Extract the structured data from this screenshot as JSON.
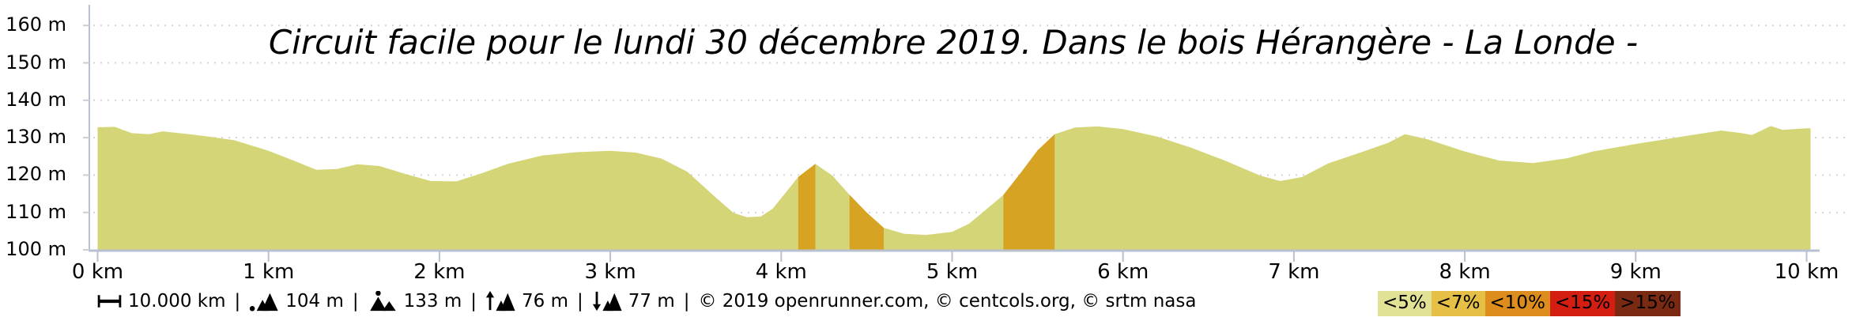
{
  "chart_data": {
    "type": "area",
    "title": "Circuit facile pour le lundi 30 décembre 2019. Dans le bois Hérangère - La Londe -",
    "x_unit": "km",
    "y_unit": "m",
    "xlim": [
      0,
      10
    ],
    "ylim": [
      100,
      165
    ],
    "grid": "dotted-horizontal",
    "x_ticks": [
      {
        "km": 0,
        "label": "0 km"
      },
      {
        "km": 1,
        "label": "1 km"
      },
      {
        "km": 2,
        "label": "2 km"
      },
      {
        "km": 3,
        "label": "3 km"
      },
      {
        "km": 4,
        "label": "4 km"
      },
      {
        "km": 5,
        "label": "5 km"
      },
      {
        "km": 6,
        "label": "6 km"
      },
      {
        "km": 7,
        "label": "7 km"
      },
      {
        "km": 8,
        "label": "8 km"
      },
      {
        "km": 9,
        "label": "9 km"
      },
      {
        "km": 10,
        "label": "10 km"
      }
    ],
    "y_ticks": [
      {
        "value": 100,
        "label": "100 m"
      },
      {
        "value": 110,
        "label": "110 m"
      },
      {
        "value": 120,
        "label": "120 m"
      },
      {
        "value": 130,
        "label": "130 m"
      },
      {
        "value": 140,
        "label": "140 m"
      },
      {
        "value": 150,
        "label": "150 m"
      },
      {
        "value": 160,
        "label": "160 m"
      }
    ],
    "profile_km_m": [
      [
        0.0,
        132.8
      ],
      [
        0.1,
        132.9
      ],
      [
        0.2,
        131.2
      ],
      [
        0.3,
        130.9
      ],
      [
        0.38,
        131.7
      ],
      [
        0.5,
        131.1
      ],
      [
        0.65,
        130.3
      ],
      [
        0.8,
        129.3
      ],
      [
        1.0,
        126.5
      ],
      [
        1.15,
        123.8
      ],
      [
        1.28,
        121.4
      ],
      [
        1.4,
        121.6
      ],
      [
        1.52,
        122.9
      ],
      [
        1.65,
        122.4
      ],
      [
        1.8,
        120.3
      ],
      [
        1.95,
        118.4
      ],
      [
        2.1,
        118.3
      ],
      [
        2.25,
        120.5
      ],
      [
        2.4,
        123.0
      ],
      [
        2.6,
        125.2
      ],
      [
        2.8,
        126.1
      ],
      [
        3.0,
        126.5
      ],
      [
        3.15,
        126.0
      ],
      [
        3.3,
        124.4
      ],
      [
        3.45,
        120.9
      ],
      [
        3.6,
        114.7
      ],
      [
        3.72,
        109.9
      ],
      [
        3.8,
        108.7
      ],
      [
        3.88,
        108.9
      ],
      [
        3.95,
        111.0
      ],
      [
        4.1,
        119.5
      ],
      [
        4.2,
        123.0
      ],
      [
        4.3,
        119.8
      ],
      [
        4.4,
        114.7
      ],
      [
        4.5,
        110.0
      ],
      [
        4.6,
        105.9
      ],
      [
        4.72,
        104.3
      ],
      [
        4.85,
        104.0
      ],
      [
        5.0,
        104.8
      ],
      [
        5.1,
        107.0
      ],
      [
        5.2,
        110.8
      ],
      [
        5.3,
        114.7
      ],
      [
        5.4,
        120.5
      ],
      [
        5.5,
        126.6
      ],
      [
        5.6,
        130.9
      ],
      [
        5.72,
        132.7
      ],
      [
        5.85,
        133.0
      ],
      [
        6.0,
        132.3
      ],
      [
        6.2,
        130.3
      ],
      [
        6.4,
        127.3
      ],
      [
        6.6,
        123.8
      ],
      [
        6.8,
        119.9
      ],
      [
        6.92,
        118.4
      ],
      [
        7.05,
        119.5
      ],
      [
        7.2,
        123.1
      ],
      [
        7.4,
        126.2
      ],
      [
        7.55,
        128.6
      ],
      [
        7.65,
        130.9
      ],
      [
        7.78,
        129.6
      ],
      [
        8.0,
        126.3
      ],
      [
        8.2,
        123.9
      ],
      [
        8.4,
        123.2
      ],
      [
        8.6,
        124.5
      ],
      [
        8.75,
        126.3
      ],
      [
        9.0,
        128.3
      ],
      [
        9.3,
        130.5
      ],
      [
        9.5,
        131.9
      ],
      [
        9.62,
        131.2
      ],
      [
        9.68,
        130.7
      ],
      [
        9.79,
        133.1
      ],
      [
        9.86,
        132.1
      ],
      [
        10.0,
        132.5
      ]
    ],
    "grade_segments_km": [
      {
        "from": 4.1,
        "to": 4.2
      },
      {
        "from": 4.4,
        "to": 4.6
      },
      {
        "from": 5.3,
        "to": 5.6
      }
    ],
    "colors": {
      "area_fill": "#d4d577",
      "grade_fill": "#d7a323",
      "axis": "#b9c1d0",
      "grid_dots": "#d4d4d8",
      "y_tick": "#c9cfd9"
    }
  },
  "stats": {
    "separator": "|",
    "distance": {
      "icon": "distance-icon",
      "value": "10.000 km"
    },
    "min_elevation": {
      "icon": "min-elevation-icon",
      "value": "104 m"
    },
    "max_elevation": {
      "icon": "max-elevation-icon",
      "value": "133 m"
    },
    "total_ascent": {
      "icon": "total-ascent-icon",
      "value": "76 m"
    },
    "total_descent": {
      "icon": "total-descent-icon",
      "value": "77 m"
    },
    "copyright": "© 2019 openrunner.com, © centcols.org, © srtm nasa"
  },
  "legend": {
    "items": [
      {
        "label": "<5%",
        "color": "#e2e296"
      },
      {
        "label": "<7%",
        "color": "#e6c046"
      },
      {
        "label": "<10%",
        "color": "#dd8c1e"
      },
      {
        "label": "<15%",
        "color": "#d41e12"
      },
      {
        "label": ">15%",
        "color": "#7a2a12"
      }
    ]
  }
}
